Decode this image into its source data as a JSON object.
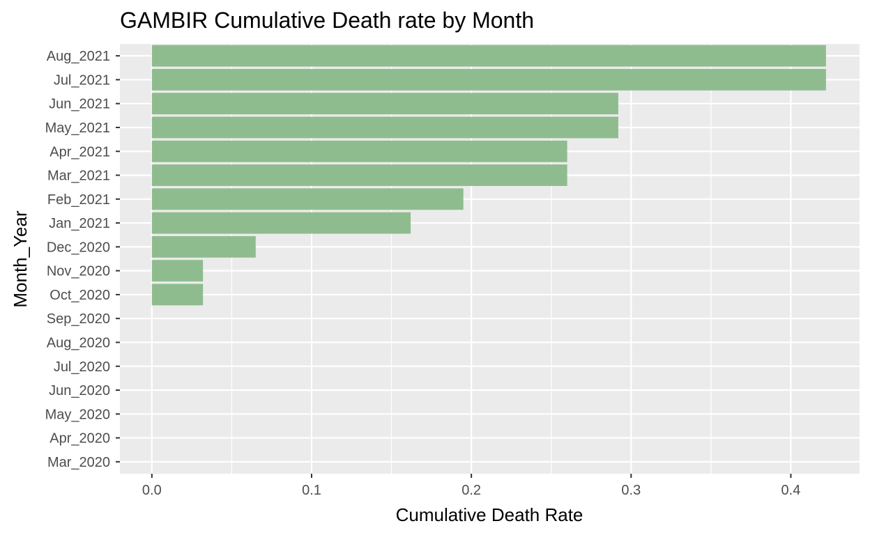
{
  "chart_data": {
    "type": "bar",
    "orientation": "horizontal",
    "title": "GAMBIR Cumulative Death rate by Month",
    "xlabel": "Cumulative Death Rate",
    "ylabel": "Month_Year",
    "categories": [
      "Mar_2020",
      "Apr_2020",
      "May_2020",
      "Jun_2020",
      "Jul_2020",
      "Aug_2020",
      "Sep_2020",
      "Oct_2020",
      "Nov_2020",
      "Dec_2020",
      "Jan_2021",
      "Feb_2021",
      "Mar_2021",
      "Apr_2021",
      "May_2021",
      "Jun_2021",
      "Jul_2021",
      "Aug_2021"
    ],
    "values": [
      0,
      0,
      0,
      0,
      0,
      0,
      0,
      0.032,
      0.032,
      0.065,
      0.162,
      0.195,
      0.26,
      0.26,
      0.292,
      0.292,
      0.422,
      0.422
    ],
    "xlim": [
      -0.02,
      0.443
    ],
    "xticks": [
      "0.0",
      "0.1",
      "0.2",
      "0.3",
      "0.4"
    ],
    "xtick_values": [
      0,
      0.1,
      0.2,
      0.3,
      0.4
    ],
    "grid": true,
    "bar_color": "#8fbc8f",
    "panel_color": "#ebebeb",
    "grid_color": "#ffffff"
  }
}
